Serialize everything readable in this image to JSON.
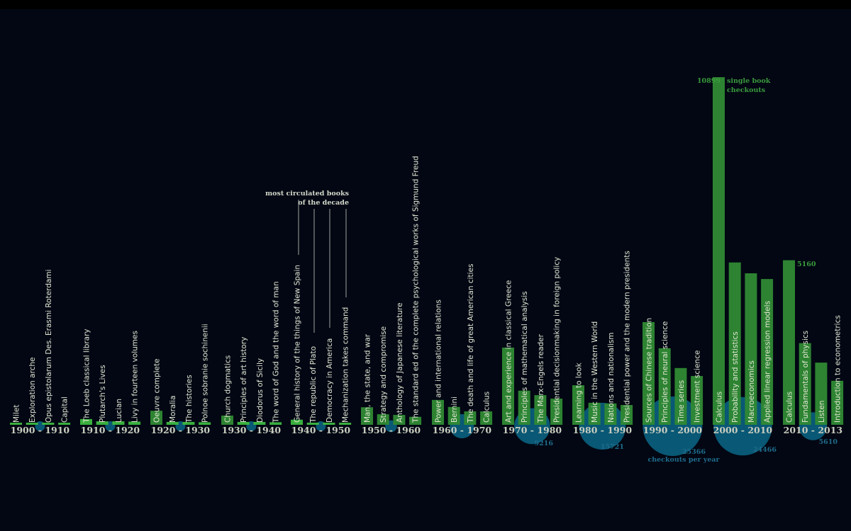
{
  "chart_data": {
    "type": "bar",
    "title": "",
    "xlabel": "",
    "ylabel": "",
    "ylim": [
      0,
      10899
    ],
    "grid": false,
    "colors": {
      "bar": "#2f8a33",
      "bar_label_highlight": "#3cb83f",
      "circle": "#0a5f7e",
      "circle_label": "#1f6c8c",
      "text": "#e2e6d4",
      "annotation_green": "#3a9a3d",
      "background": "#020713"
    },
    "annotations": {
      "top_note_line1": "most circulated books",
      "top_note_line2": "of the decade",
      "max_value_label": "10899",
      "max_value_caption_line1": "single book",
      "max_value_caption_line2": "checkouts",
      "circle_caption": "checkouts per year",
      "secondary_value_label": "5160"
    },
    "decades": [
      {
        "label": "1900 - 1910",
        "checkouts_per_year": 150,
        "books": [
          {
            "title": "Milet",
            "checkouts": 60
          },
          {
            "title": "Exploration arche",
            "checkouts": 60
          },
          {
            "title": "Opus epistolarum Des. Erasmi Roterdami",
            "checkouts": 60
          },
          {
            "title": "Capital",
            "checkouts": 50
          }
        ]
      },
      {
        "label": "1910 - 1920",
        "checkouts_per_year": 250,
        "books": [
          {
            "title": "The Loeb classical library",
            "checkouts": 180
          },
          {
            "title": "Plutarch's Lives",
            "checkouts": 110
          },
          {
            "title": "Lucian",
            "checkouts": 110
          },
          {
            "title": "Livy in fourteen volumes",
            "checkouts": 100
          }
        ]
      },
      {
        "label": "1920 - 1930",
        "checkouts_per_year": 260,
        "books": [
          {
            "title": "Oeuvre complete",
            "checkouts": 440
          },
          {
            "title": "Moralia",
            "checkouts": 90
          },
          {
            "title": "The histories",
            "checkouts": 90
          },
          {
            "title": "Polnoe sobranie sochinenii",
            "checkouts": 80
          }
        ]
      },
      {
        "label": "1930 - 1940",
        "checkouts_per_year": 360,
        "books": [
          {
            "title": "Church dogmatics",
            "checkouts": 290
          },
          {
            "title": "Principles of art history",
            "checkouts": 90
          },
          {
            "title": "Diodorus of Sicily",
            "checkouts": 90
          },
          {
            "title": "The word of God and the word of man",
            "checkouts": 80
          }
        ]
      },
      {
        "label": "1940 - 1950",
        "checkouts_per_year": 300,
        "books": [
          {
            "title": "General history of the things of New Spain",
            "checkouts": 160
          },
          {
            "title": "The republic of Plato",
            "checkouts": 60
          },
          {
            "title": "Democracy in America",
            "checkouts": 60
          },
          {
            "title": "Mechanization takes command",
            "checkouts": 50
          }
        ]
      },
      {
        "label": "1950 - 1960",
        "checkouts_per_year": 1000,
        "books": [
          {
            "title": "Man, the state, and war",
            "checkouts": 550
          },
          {
            "title": "Strategy and compromise",
            "checkouts": 330
          },
          {
            "title": "Anthology of Japanese literature",
            "checkouts": 310
          },
          {
            "title": "The standard ed of the complete psychological works of Sigmund Freud",
            "checkouts": 250
          }
        ]
      },
      {
        "label": "1960 - 1970",
        "checkouts_per_year": 4200,
        "books": [
          {
            "title": "Power and international relations",
            "checkouts": 780
          },
          {
            "title": "Bernini",
            "checkouts": 560
          },
          {
            "title": "The death and life of great American cities",
            "checkouts": 420
          },
          {
            "title": "Calculus",
            "checkouts": 420
          }
        ]
      },
      {
        "label": "1970 - 1980",
        "checkouts_per_year": 9216,
        "books": [
          {
            "title": "Art and experience in classical Greece",
            "checkouts": 2420
          },
          {
            "title": "Principles of mathematical analysis",
            "checkouts": 1070
          },
          {
            "title": "The Marx-Engels reader",
            "checkouts": 930
          },
          {
            "title": "Presidential decisionmaking in foreign policy",
            "checkouts": 820
          }
        ]
      },
      {
        "label": "1980 - 1990",
        "checkouts_per_year": 15721,
        "books": [
          {
            "title": "Learning to look",
            "checkouts": 1240
          },
          {
            "title": "Music in the Western World",
            "checkouts": 690
          },
          {
            "title": "Nations and nationalism",
            "checkouts": 670
          },
          {
            "title": "Presidential power and the modern presidents",
            "checkouts": 620
          }
        ]
      },
      {
        "label": "1990 - 2000",
        "checkouts_per_year": 25366,
        "books": [
          {
            "title": "Sources of Chinese tradition",
            "checkouts": 3220
          },
          {
            "title": "Principles of neural science",
            "checkouts": 2400
          },
          {
            "title": "Time series",
            "checkouts": 1780
          },
          {
            "title": "Investment science",
            "checkouts": 1530
          }
        ]
      },
      {
        "label": "2000 - 2010",
        "checkouts_per_year": 24466,
        "books": [
          {
            "title": "Calculus",
            "checkouts": 10899
          },
          {
            "title": "Probability and statistics",
            "checkouts": 5090
          },
          {
            "title": "Macroeconomics",
            "checkouts": 4750
          },
          {
            "title": "Applied linear regression models",
            "checkouts": 4570
          }
        ]
      },
      {
        "label": "2010 - 2013",
        "checkouts_per_year": 5610,
        "books": [
          {
            "title": "Calculus",
            "checkouts": 5160
          },
          {
            "title": "Fundamentals of physics",
            "checkouts": 2560
          },
          {
            "title": "Listen",
            "checkouts": 1950
          },
          {
            "title": "Introduction to econometrics",
            "checkouts": 1380
          }
        ]
      }
    ]
  }
}
